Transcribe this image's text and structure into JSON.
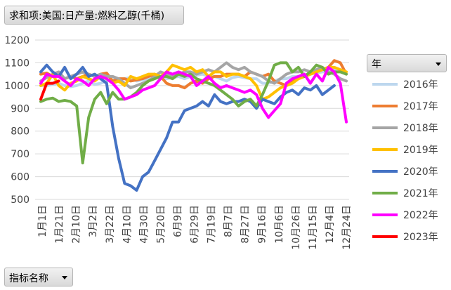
{
  "field_button": {
    "label": "求和项:美国:日产量:燃料乙醇(千桶)"
  },
  "legend_header": {
    "label": "年"
  },
  "filter_button": {
    "label": "指标名称"
  },
  "chart_data": {
    "type": "line",
    "title": "",
    "xlabel": "",
    "ylabel": "",
    "ylim": [
      500,
      1200
    ],
    "yticks": [
      500,
      600,
      700,
      800,
      900,
      1000,
      1100,
      1200
    ],
    "grid": true,
    "legend_position": "right",
    "x_tick_labels": [
      "1月1日",
      "1月21日",
      "2月10日",
      "3月2日",
      "3月22日",
      "4月10日",
      "4月30日",
      "5月20日",
      "6月9日",
      "6月29日",
      "7月19日",
      "8月7日",
      "8月27日",
      "9月16日",
      "10月6日",
      "10月26日",
      "11月15日",
      "12月4日",
      "12月24日"
    ],
    "series": [
      {
        "name": "2016年",
        "color": "#bdd7ee",
        "values": [
          1000,
          1000,
          1005,
          1010,
          1000,
          995,
          1000,
          1010,
          1020,
          1005,
          1010,
          1020,
          1025,
          1030,
          1030,
          1035,
          1020,
          1025,
          1030,
          1035,
          1040,
          1030,
          1035,
          1040,
          1030,
          1040,
          1045,
          1050,
          1040,
          1040,
          1030,
          1020,
          1035,
          1040,
          1035,
          1030,
          1030,
          1010,
          1010,
          1020,
          1030,
          1030,
          1040,
          1040,
          1040,
          1050,
          1055,
          1060,
          1060,
          1070,
          1060,
          1060
        ]
      },
      {
        "name": "2017年",
        "color": "#ed7d31",
        "values": [
          1050,
          1055,
          1040,
          1045,
          1030,
          1040,
          1030,
          1040,
          1050,
          1040,
          1050,
          1055,
          1020,
          1030,
          1030,
          1020,
          1025,
          1030,
          1040,
          1050,
          1040,
          1010,
          1000,
          1000,
          990,
          1010,
          1020,
          1010,
          1030,
          1040,
          1040,
          1050,
          1050,
          1050,
          1040,
          1060,
          1050,
          1040,
          1050,
          1020,
          1010,
          1000,
          1020,
          1030,
          1040,
          1050,
          1060,
          1070,
          1080,
          1110,
          1100,
          1050
        ]
      },
      {
        "name": "2018年",
        "color": "#a5a5a5",
        "values": [
          1020,
          1035,
          1050,
          1060,
          1030,
          1040,
          1050,
          1060,
          1050,
          1040,
          1050,
          1040,
          1040,
          1030,
          1010,
          990,
          1000,
          1010,
          1020,
          1040,
          1060,
          1050,
          1040,
          1050,
          1060,
          1060,
          1050,
          1060,
          1070,
          1060,
          1080,
          1100,
          1080,
          1070,
          1080,
          1060,
          1050,
          1040,
          1020,
          1010,
          1030,
          1050,
          1060,
          1060,
          1070,
          1060,
          1070,
          1080,
          1060,
          1050,
          1030,
          1020
        ]
      },
      {
        "name": "2019年",
        "color": "#ffc000",
        "values": [
          1000,
          1010,
          1050,
          1000,
          980,
          1010,
          1020,
          1040,
          1030,
          1020,
          1040,
          1030,
          1010,
          1020,
          1000,
          1040,
          1030,
          1040,
          1050,
          1050,
          1040,
          1060,
          1090,
          1080,
          1070,
          1080,
          1060,
          1070,
          1040,
          1060,
          1060,
          1040,
          1050,
          1050,
          1040,
          1030,
          1000,
          940,
          950,
          970,
          990,
          1000,
          1010,
          1030,
          1040,
          1050,
          1060,
          1070,
          1080,
          1080,
          1070,
          1060
        ]
      },
      {
        "name": "2020年",
        "color": "#4472c4",
        "values": [
          1060,
          1090,
          1060,
          1040,
          1080,
          1030,
          1050,
          1080,
          1040,
          1050,
          1030,
          1010,
          820,
          680,
          570,
          560,
          540,
          600,
          620,
          670,
          720,
          770,
          840,
          840,
          890,
          900,
          910,
          930,
          910,
          960,
          930,
          920,
          930,
          930,
          940,
          930,
          900,
          940,
          930,
          920,
          950,
          970,
          980,
          960,
          990,
          980,
          1000,
          960,
          980,
          1000,
          null,
          null
        ]
      },
      {
        "name": "2021年",
        "color": "#70ad47",
        "values": [
          930,
          940,
          945,
          930,
          935,
          930,
          910,
          660,
          860,
          940,
          970,
          920,
          970,
          940,
          940,
          950,
          970,
          1000,
          1020,
          1030,
          1040,
          1040,
          1030,
          1050,
          1040,
          1050,
          1030,
          1020,
          1010,
          1000,
          980,
          960,
          940,
          910,
          930,
          940,
          910,
          960,
          1020,
          1090,
          1100,
          1100,
          1060,
          1080,
          1040,
          1060,
          1090,
          1080,
          1050,
          1060,
          1060,
          1050
        ]
      },
      {
        "name": "2022年",
        "color": "#ff00ff",
        "values": [
          1010,
          1050,
          1040,
          1040,
          1020,
          1000,
          1030,
          1020,
          1000,
          1030,
          1040,
          1030,
          1010,
          980,
          940,
          950,
          960,
          980,
          990,
          1000,
          1030,
          1060,
          1050,
          1060,
          1050,
          1040,
          1000,
          1020,
          1040,
          1010,
          990,
          1000,
          990,
          980,
          970,
          980,
          960,
          900,
          860,
          890,
          920,
          1010,
          1030,
          1040,
          1050,
          1010,
          1050,
          1020,
          1080,
          1060,
          1010,
          840
        ]
      },
      {
        "name": "2023年",
        "color": "#ff0000",
        "values": [
          940,
          1010,
          1010,
          1020,
          null,
          null,
          null,
          null,
          null,
          null,
          null,
          null,
          null,
          null,
          null,
          null,
          null,
          null,
          null,
          null,
          null,
          null,
          null,
          null,
          null,
          null,
          null,
          null,
          null,
          null,
          null,
          null,
          null,
          null,
          null,
          null,
          null,
          null,
          null,
          null,
          null,
          null,
          null,
          null,
          null,
          null,
          null,
          null,
          null,
          null,
          null,
          null
        ]
      }
    ]
  }
}
